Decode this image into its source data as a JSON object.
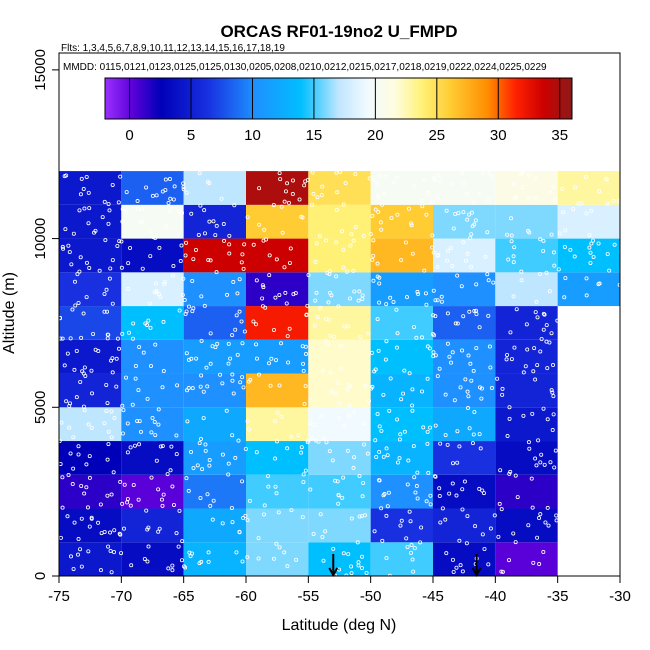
{
  "chart_data": {
    "type": "heatmap",
    "title": "ORCAS RF01-19no2 U_FMPD",
    "flights_label": "Flts: 1,3,4,5,6,7,8,9,10,11,12,13,14,15,16,17,18,19",
    "dates_label": "MMDD: 0115,0121,0123,0125,0125,0130,0205,0208,0210,0212,0215,0217,0218,0219,0222,0224,0225,0229",
    "xlabel": "Latitude (deg N)",
    "ylabel": "Altitude (m)",
    "xlim": [
      -75,
      -30
    ],
    "ylim": [
      0,
      15500
    ],
    "x_ticks": [
      -75,
      -70,
      -65,
      -60,
      -55,
      -50,
      -45,
      -40,
      -35,
      -30
    ],
    "y_ticks": [
      0,
      5000,
      10000,
      15000
    ],
    "colorbar": {
      "min": -2,
      "max": 36,
      "ticks": [
        0,
        5,
        10,
        15,
        20,
        25,
        30,
        35
      ]
    },
    "lat_bins": [
      -75,
      -70,
      -65,
      -60,
      -55,
      -50,
      -45,
      -40,
      -35,
      -30
    ],
    "alt_bins": [
      0,
      1000,
      2000,
      3000,
      4000,
      5000,
      6000,
      7000,
      8000,
      9000,
      10000,
      11000,
      12000
    ],
    "values": [
      [
        4,
        3,
        13,
        16,
        14,
        15,
        3,
        0,
        null
      ],
      [
        3,
        5,
        12,
        16,
        16,
        6,
        5,
        3,
        null
      ],
      [
        1,
        0,
        9,
        15,
        15,
        10,
        3,
        1,
        null
      ],
      [
        2,
        3,
        11,
        14,
        16,
        13,
        6,
        3,
        null
      ],
      [
        17,
        10,
        12,
        23,
        19,
        14,
        12,
        4,
        null
      ],
      [
        5,
        10,
        10,
        27,
        22,
        13,
        10,
        5,
        null
      ],
      [
        4,
        10,
        11,
        11,
        22,
        14,
        10,
        5,
        null
      ],
      [
        7,
        14,
        8,
        32,
        23,
        15,
        8,
        5,
        null
      ],
      [
        6,
        18,
        10,
        1,
        16,
        11,
        10,
        17,
        11
      ],
      [
        4,
        3,
        34,
        34,
        24,
        27,
        18,
        15,
        14
      ],
      [
        4,
        20,
        5,
        26,
        24,
        26,
        16,
        16,
        18
      ],
      [
        4,
        8,
        17,
        35,
        25,
        20,
        20,
        21,
        23
      ]
    ],
    "markers": [
      {
        "type": "down-arrow",
        "latitude": -53
      },
      {
        "type": "down-arrow",
        "latitude": -41.5
      }
    ]
  }
}
